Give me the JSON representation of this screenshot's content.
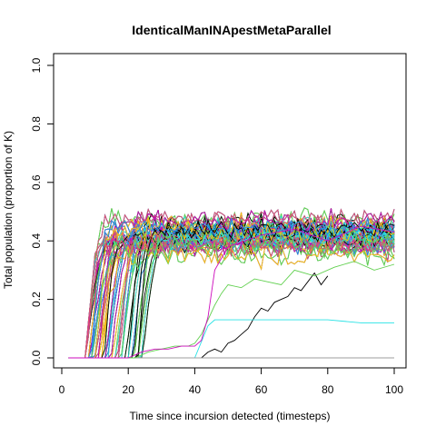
{
  "chart_data": {
    "type": "line",
    "title": "IdenticalManINApestMetaParallel",
    "xlabel": "Time since incursion detected (timesteps)",
    "ylabel": "Total population (proportion of K)",
    "xlim": [
      0,
      100
    ],
    "ylim": [
      0,
      1
    ],
    "xticks": [
      "0",
      "20",
      "40",
      "60",
      "80",
      "100"
    ],
    "yticks": [
      "0.0",
      "0.2",
      "0.4",
      "0.6",
      "0.8",
      "1.0"
    ],
    "grid": false,
    "legend": "none",
    "n_series": 200,
    "colors": [
      "#000000",
      "#DF536B",
      "#61D04F",
      "#2297E6",
      "#28E2E5",
      "#CD0BBC",
      "#F5C710",
      "#9E9E9E"
    ],
    "series_summary": {
      "start_x": 2,
      "end_x": 100,
      "initial_value": 0.0,
      "rise_start_range": [
        7,
        25
      ],
      "plateau_range": [
        0.25,
        0.6
      ],
      "plateau_typical": 0.42,
      "max_value": 0.63
    },
    "highlighted_series": [
      {
        "color": "#000000",
        "x": [
          2,
          42,
          44,
          46,
          48,
          50,
          52,
          54,
          56,
          58,
          60,
          62,
          64,
          66,
          68,
          70,
          72,
          74,
          76,
          78,
          80
        ],
        "y": [
          0,
          0,
          0.02,
          0.03,
          0.02,
          0.05,
          0.06,
          0.08,
          0.1,
          0.14,
          0.17,
          0.16,
          0.19,
          0.2,
          0.21,
          0.24,
          0.23,
          0.26,
          0.29,
          0.25,
          0.28
        ]
      },
      {
        "color": "#28E2E5",
        "x": [
          2,
          40,
          44,
          46,
          48,
          50,
          60,
          70,
          80,
          90,
          100
        ],
        "y": [
          0,
          0,
          0.11,
          0.13,
          0.13,
          0.13,
          0.13,
          0.13,
          0.13,
          0.12,
          0.12
        ]
      },
      {
        "color": "#9E9E9E",
        "x": [
          2,
          100
        ],
        "y": [
          0,
          0
        ]
      },
      {
        "color": "#61D04F",
        "x": [
          2,
          22,
          26,
          30,
          34,
          38,
          40,
          42,
          44,
          46,
          48,
          50,
          54,
          58,
          62,
          66,
          70,
          76,
          82,
          88,
          94,
          100
        ],
        "y": [
          0,
          0,
          0.02,
          0.03,
          0.04,
          0.04,
          0.05,
          0.08,
          0.13,
          0.18,
          0.22,
          0.25,
          0.24,
          0.27,
          0.26,
          0.25,
          0.3,
          0.28,
          0.31,
          0.33,
          0.3,
          0.32
        ]
      },
      {
        "color": "#CD0BBC",
        "x": [
          2,
          20,
          24,
          28,
          32,
          36,
          40,
          42,
          44,
          46,
          50,
          60,
          70,
          80,
          90,
          100
        ],
        "y": [
          0,
          0,
          0.02,
          0.03,
          0.03,
          0.04,
          0.04,
          0.06,
          0.14,
          0.3,
          0.38,
          0.42,
          0.44,
          0.4,
          0.45,
          0.43
        ]
      }
    ]
  }
}
